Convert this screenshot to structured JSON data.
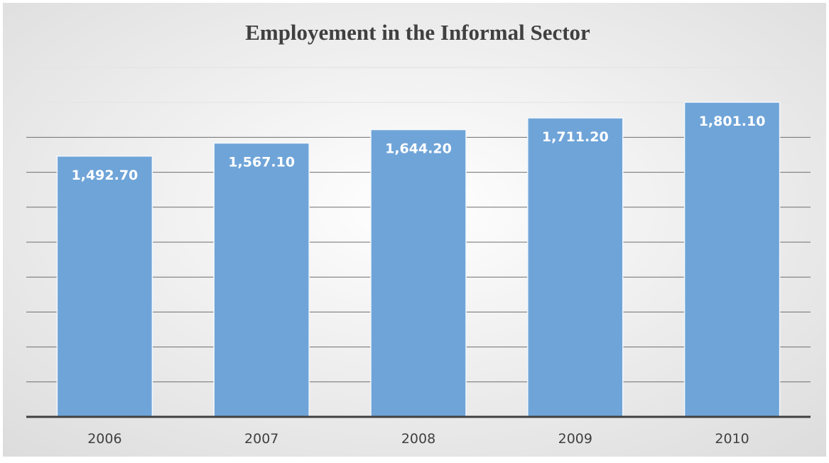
{
  "colors": {
    "bar": "#6fa4d8",
    "bar_edge": "#f2f7fc",
    "gridline": "#6e6e6e",
    "gridline_light": "#e4e4e4",
    "axis": "#404040",
    "background_center": "#ffffff",
    "background_edge": "#dcdcdc"
  },
  "chart_data": {
    "type": "bar",
    "title": "Employement in the Informal Sector",
    "xlabel": "",
    "ylabel": "",
    "categories": [
      "2006",
      "2007",
      "2008",
      "2009",
      "2010"
    ],
    "values": [
      1492.7,
      1567.1,
      1644.2,
      1711.2,
      1801.1
    ],
    "value_labels": [
      "1,492.70",
      "1,567.10",
      "1,644.20",
      "1,711.20",
      "1,801.10"
    ],
    "ylim": [
      0,
      2000
    ],
    "grid": true,
    "legend": "none"
  }
}
